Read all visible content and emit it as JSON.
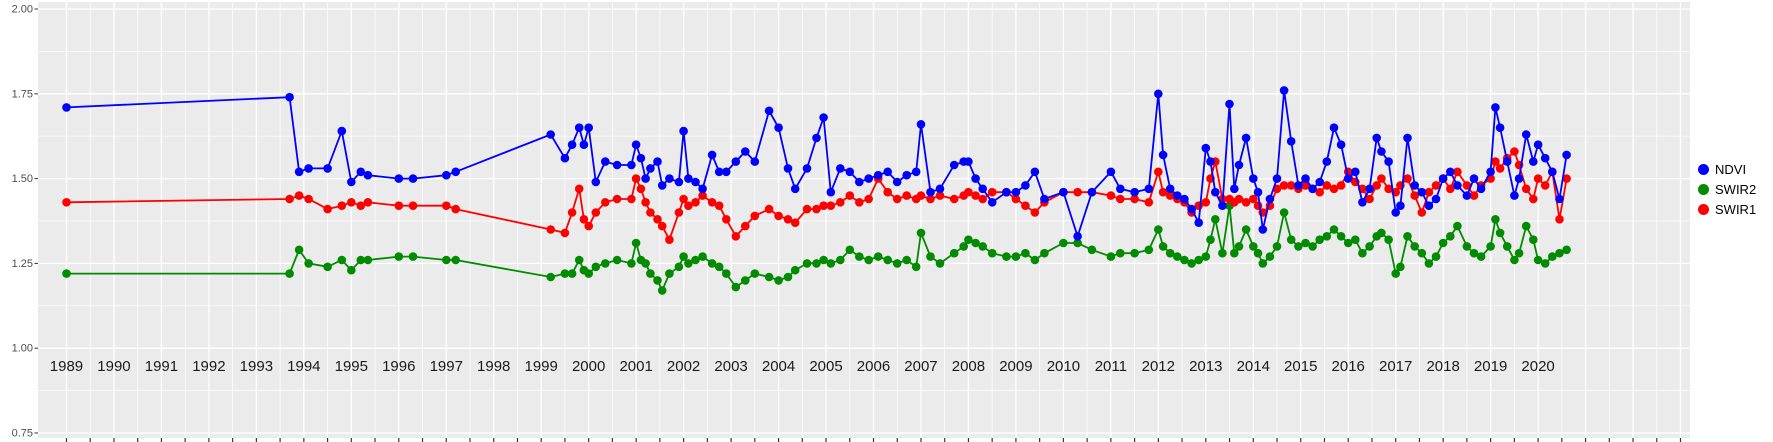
{
  "figure": {
    "kind": "time-series scatter/line plot, ggplot-style gray panel with white gridlines",
    "background": "#ffffff",
    "panel_background": "#EBEBEB",
    "gridline_color": "#FFFFFF",
    "tick_text_color": "#4d4d4d",
    "axis_text_color": "#1a1a1a"
  },
  "legend": {
    "items": [
      "NDVI",
      "SWIR2",
      "SWIR1"
    ]
  },
  "chart_data": {
    "type": "line",
    "title": "",
    "xlabel": "",
    "ylabel": "",
    "xlim": [
      1988.4,
      2023.2
    ],
    "ylim": [
      0.75,
      2.0
    ],
    "grid": true,
    "legend_position": "right",
    "x_ticks": [
      1989,
      1990,
      1991,
      1992,
      1993,
      1994,
      1995,
      1996,
      1997,
      1998,
      1999,
      2000,
      2001,
      2002,
      2003,
      2004,
      2005,
      2006,
      2007,
      2008,
      2009,
      2010,
      2011,
      2012,
      2013,
      2014,
      2015,
      2016,
      2017,
      2018,
      2019,
      2020
    ],
    "y_ticks": [
      0.75,
      1.0,
      1.25,
      1.5,
      1.75,
      2.0
    ],
    "y_tick_labels": [
      "0.75",
      "1.00",
      "1.25",
      "1.50",
      "1.75",
      "2.00"
    ],
    "x": [
      1989.0,
      1993.7,
      1993.9,
      1994.1,
      1994.5,
      1994.8,
      1995.0,
      1995.2,
      1995.35,
      1996.0,
      1996.3,
      1997.0,
      1997.2,
      1999.2,
      1999.5,
      1999.65,
      1999.8,
      1999.9,
      2000.0,
      2000.15,
      2000.35,
      2000.6,
      2000.9,
      2001.0,
      2001.1,
      2001.2,
      2001.3,
      2001.45,
      2001.55,
      2001.7,
      2001.9,
      2002.0,
      2002.1,
      2002.25,
      2002.4,
      2002.6,
      2002.75,
      2002.9,
      2003.1,
      2003.3,
      2003.5,
      2003.8,
      2004.0,
      2004.2,
      2004.35,
      2004.6,
      2004.8,
      2004.95,
      2005.1,
      2005.3,
      2005.5,
      2005.7,
      2005.9,
      2006.1,
      2006.3,
      2006.5,
      2006.7,
      2006.9,
      2007.0,
      2007.2,
      2007.4,
      2007.7,
      2007.9,
      2008.0,
      2008.15,
      2008.3,
      2008.5,
      2008.8,
      2009.0,
      2009.2,
      2009.4,
      2009.6,
      2010.0,
      2010.3,
      2010.6,
      2011.0,
      2011.2,
      2011.5,
      2011.8,
      2012.0,
      2012.1,
      2012.25,
      2012.4,
      2012.55,
      2012.7,
      2012.85,
      2013.0,
      2013.1,
      2013.2,
      2013.35,
      2013.5,
      2013.6,
      2013.7,
      2013.85,
      2014.0,
      2014.1,
      2014.2,
      2014.35,
      2014.5,
      2014.65,
      2014.8,
      2014.95,
      2015.1,
      2015.25,
      2015.4,
      2015.55,
      2015.7,
      2015.85,
      2016.0,
      2016.15,
      2016.3,
      2016.45,
      2016.6,
      2016.7,
      2016.85,
      2017.0,
      2017.1,
      2017.25,
      2017.4,
      2017.55,
      2017.7,
      2017.85,
      2018.0,
      2018.15,
      2018.3,
      2018.5,
      2018.65,
      2018.8,
      2019.0,
      2019.1,
      2019.2,
      2019.35,
      2019.5,
      2019.6,
      2019.75,
      2019.9,
      2020.0,
      2020.15,
      2020.3,
      2020.45,
      2020.6
    ],
    "series": [
      {
        "name": "NDVI",
        "color": "#0000FF",
        "values": [
          1.71,
          1.74,
          1.52,
          1.53,
          1.53,
          1.64,
          1.49,
          1.52,
          1.51,
          1.5,
          1.5,
          1.51,
          1.52,
          1.63,
          1.56,
          1.6,
          1.65,
          1.6,
          1.65,
          1.49,
          1.55,
          1.54,
          1.54,
          1.6,
          1.56,
          1.5,
          1.53,
          1.55,
          1.48,
          1.5,
          1.49,
          1.64,
          1.5,
          1.49,
          1.47,
          1.57,
          1.52,
          1.52,
          1.55,
          1.58,
          1.55,
          1.7,
          1.65,
          1.53,
          1.47,
          1.53,
          1.62,
          1.68,
          1.46,
          1.53,
          1.52,
          1.49,
          1.5,
          1.51,
          1.52,
          1.49,
          1.51,
          1.52,
          1.66,
          1.46,
          1.47,
          1.54,
          1.55,
          1.55,
          1.5,
          1.47,
          1.43,
          1.46,
          1.46,
          1.48,
          1.52,
          1.44,
          1.46,
          1.33,
          1.46,
          1.52,
          1.47,
          1.46,
          1.47,
          1.75,
          1.57,
          1.47,
          1.45,
          1.44,
          1.41,
          1.37,
          1.59,
          1.55,
          1.46,
          1.42,
          1.72,
          1.47,
          1.54,
          1.62,
          1.5,
          1.46,
          1.35,
          1.44,
          1.5,
          1.76,
          1.61,
          1.48,
          1.5,
          1.47,
          1.49,
          1.55,
          1.65,
          1.6,
          1.5,
          1.52,
          1.43,
          1.47,
          1.62,
          1.58,
          1.55,
          1.4,
          1.42,
          1.62,
          1.48,
          1.46,
          1.42,
          1.44,
          1.5,
          1.52,
          1.48,
          1.45,
          1.5,
          1.47,
          1.52,
          1.71,
          1.65,
          1.55,
          1.45,
          1.5,
          1.63,
          1.55,
          1.6,
          1.56,
          1.52,
          1.44,
          1.57
        ]
      },
      {
        "name": "SWIR2",
        "color": "#008B00",
        "values": [
          1.22,
          1.22,
          1.29,
          1.25,
          1.24,
          1.26,
          1.23,
          1.26,
          1.26,
          1.27,
          1.27,
          1.26,
          1.26,
          1.21,
          1.22,
          1.22,
          1.26,
          1.23,
          1.22,
          1.24,
          1.25,
          1.26,
          1.25,
          1.31,
          1.26,
          1.25,
          1.22,
          1.2,
          1.17,
          1.22,
          1.24,
          1.27,
          1.25,
          1.26,
          1.27,
          1.25,
          1.24,
          1.22,
          1.18,
          1.2,
          1.22,
          1.21,
          1.2,
          1.21,
          1.23,
          1.25,
          1.25,
          1.26,
          1.25,
          1.26,
          1.29,
          1.27,
          1.26,
          1.27,
          1.26,
          1.25,
          1.26,
          1.24,
          1.34,
          1.27,
          1.25,
          1.28,
          1.3,
          1.32,
          1.31,
          1.3,
          1.28,
          1.27,
          1.27,
          1.28,
          1.26,
          1.28,
          1.31,
          1.31,
          1.29,
          1.27,
          1.28,
          1.28,
          1.29,
          1.35,
          1.3,
          1.28,
          1.27,
          1.26,
          1.25,
          1.26,
          1.27,
          1.32,
          1.38,
          1.28,
          1.42,
          1.28,
          1.3,
          1.35,
          1.3,
          1.28,
          1.25,
          1.27,
          1.3,
          1.4,
          1.32,
          1.3,
          1.31,
          1.3,
          1.32,
          1.33,
          1.35,
          1.33,
          1.31,
          1.32,
          1.28,
          1.3,
          1.33,
          1.34,
          1.32,
          1.22,
          1.24,
          1.33,
          1.3,
          1.28,
          1.25,
          1.27,
          1.31,
          1.33,
          1.36,
          1.3,
          1.28,
          1.27,
          1.3,
          1.38,
          1.34,
          1.3,
          1.26,
          1.28,
          1.36,
          1.32,
          1.26,
          1.25,
          1.27,
          1.28,
          1.29
        ]
      },
      {
        "name": "SWIR1",
        "color": "#FF0000",
        "values": [
          1.43,
          1.44,
          1.45,
          1.44,
          1.41,
          1.42,
          1.43,
          1.42,
          1.43,
          1.42,
          1.42,
          1.42,
          1.41,
          1.35,
          1.34,
          1.4,
          1.47,
          1.38,
          1.36,
          1.4,
          1.43,
          1.44,
          1.44,
          1.5,
          1.47,
          1.43,
          1.4,
          1.38,
          1.36,
          1.32,
          1.4,
          1.44,
          1.42,
          1.43,
          1.45,
          1.43,
          1.42,
          1.38,
          1.33,
          1.36,
          1.39,
          1.41,
          1.39,
          1.38,
          1.37,
          1.41,
          1.41,
          1.42,
          1.42,
          1.43,
          1.45,
          1.43,
          1.44,
          1.5,
          1.46,
          1.44,
          1.45,
          1.44,
          1.45,
          1.44,
          1.45,
          1.44,
          1.45,
          1.46,
          1.45,
          1.44,
          1.46,
          1.46,
          1.44,
          1.42,
          1.4,
          1.43,
          1.46,
          1.46,
          1.46,
          1.45,
          1.44,
          1.44,
          1.43,
          1.52,
          1.46,
          1.45,
          1.44,
          1.43,
          1.4,
          1.42,
          1.43,
          1.5,
          1.55,
          1.44,
          1.44,
          1.43,
          1.44,
          1.43,
          1.44,
          1.42,
          1.4,
          1.42,
          1.47,
          1.48,
          1.48,
          1.47,
          1.48,
          1.47,
          1.46,
          1.48,
          1.47,
          1.48,
          1.52,
          1.49,
          1.47,
          1.44,
          1.48,
          1.5,
          1.47,
          1.46,
          1.48,
          1.5,
          1.45,
          1.4,
          1.46,
          1.48,
          1.5,
          1.47,
          1.52,
          1.48,
          1.45,
          1.48,
          1.5,
          1.55,
          1.53,
          1.56,
          1.58,
          1.54,
          1.47,
          1.44,
          1.5,
          1.48,
          1.52,
          1.38,
          1.5
        ]
      }
    ],
    "draw_order": [
      1,
      2,
      0
    ]
  }
}
